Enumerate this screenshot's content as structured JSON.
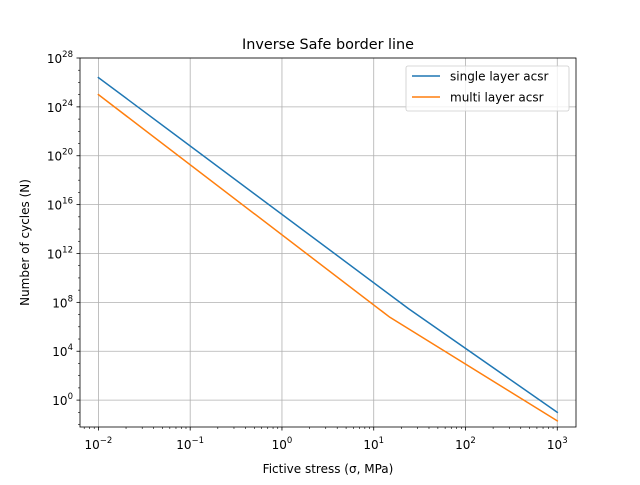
{
  "chart_data": {
    "type": "line",
    "title": "Inverse Safe border line",
    "xlabel": "Fictive stress (σ, MPa)",
    "ylabel": "Number of cycles (N)",
    "x_scale": "log",
    "y_scale": "log",
    "xlim": [
      0.0063,
      1600
    ],
    "ylim": [
      0.0063,
      1e+28
    ],
    "x_ticks": [
      {
        "value": 0.01,
        "base": "10",
        "exp": "−2"
      },
      {
        "value": 0.1,
        "base": "10",
        "exp": "−1"
      },
      {
        "value": 1,
        "base": "10",
        "exp": "0"
      },
      {
        "value": 10,
        "base": "10",
        "exp": "1"
      },
      {
        "value": 100,
        "base": "10",
        "exp": "2"
      },
      {
        "value": 1000,
        "base": "10",
        "exp": "3"
      }
    ],
    "y_ticks": [
      {
        "value": 1,
        "base": "10",
        "exp": "0"
      },
      {
        "value": 10000,
        "base": "10",
        "exp": "4"
      },
      {
        "value": 100000000.0,
        "base": "10",
        "exp": "8"
      },
      {
        "value": 1000000000000.0,
        "base": "10",
        "exp": "12"
      },
      {
        "value": 1e+16,
        "base": "10",
        "exp": "16"
      },
      {
        "value": 1e+20,
        "base": "10",
        "exp": "20"
      },
      {
        "value": 1e+24,
        "base": "10",
        "exp": "24"
      },
      {
        "value": 1e+28,
        "base": "10",
        "exp": "28"
      }
    ],
    "grid": true,
    "legend_position": "top-right",
    "series": [
      {
        "name": "single layer acsr",
        "color": "#1f77b4",
        "x": [
          0.01,
          24,
          1000
        ],
        "y": [
          2.5e+26,
          30000000.0,
          0.1
        ]
      },
      {
        "name": "multi layer acsr",
        "color": "#ff7f0e",
        "x": [
          0.01,
          15,
          1000
        ],
        "y": [
          1e+25,
          6000000.0,
          0.02
        ]
      }
    ]
  }
}
